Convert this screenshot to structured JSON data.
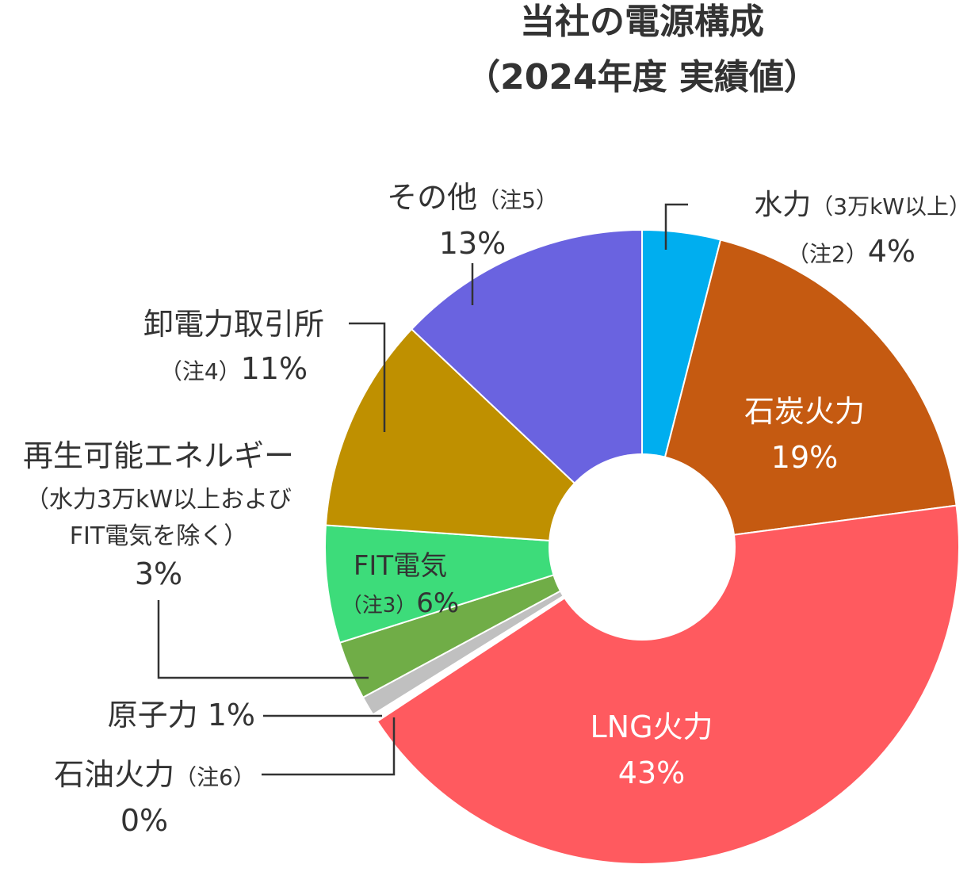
{
  "chart_data": {
    "type": "pie",
    "title": "当社の電源構成",
    "subtitle": "（2024年度 実績値）",
    "labels": [
      {
        "name": "水力",
        "note": "（3万kW以上）",
        "note2": "（注2）",
        "pct": "4%"
      },
      {
        "name": "石炭火力",
        "pct": "19%"
      },
      {
        "name": "LNG火力",
        "pct": "43%"
      },
      {
        "name": "石油火力",
        "note": "（注6）",
        "pct": "0%"
      },
      {
        "name": "原子力",
        "pct": "1%"
      },
      {
        "name": "再生可能エネルギー",
        "note": "（水力3万kW以上および",
        "note2": "FIT電気を除く）",
        "pct": "3%"
      },
      {
        "name": "FIT電気",
        "note": "（注3）",
        "pct": "6%"
      },
      {
        "name": "卸電力取引所",
        "note": "（注4）",
        "pct": "11%"
      },
      {
        "name": "その他",
        "note": "（注5）",
        "pct": "13%"
      }
    ],
    "series": [
      {
        "name": "水力（3万kW以上）",
        "value": 4,
        "color": "#00AEEF"
      },
      {
        "name": "石炭火力",
        "value": 19,
        "color": "#C55A11"
      },
      {
        "name": "LNG火力",
        "value": 43,
        "color": "#FF5A5F"
      },
      {
        "name": "石油火力",
        "value": 0.4,
        "color": "#FFFFFF"
      },
      {
        "name": "原子力",
        "value": 1,
        "color": "#C0C0C0"
      },
      {
        "name": "再生可能エネルギー",
        "value": 3,
        "color": "#70AD47"
      },
      {
        "name": "FIT電気",
        "value": 6,
        "color": "#3DDC7A"
      },
      {
        "name": "卸電力取引所",
        "value": 11,
        "color": "#BF9000"
      },
      {
        "name": "その他",
        "value": 13,
        "color": "#6A63E0"
      }
    ]
  }
}
